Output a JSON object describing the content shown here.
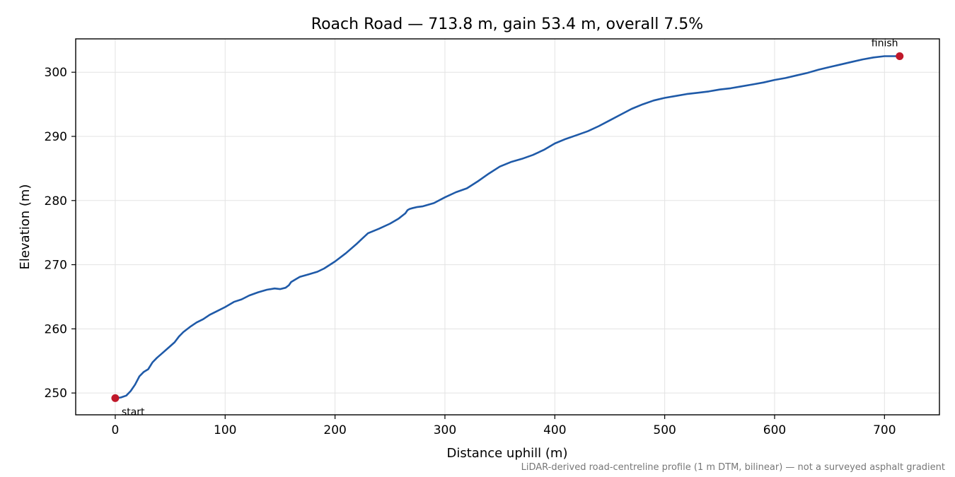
{
  "chart_data": {
    "type": "line",
    "title": "Roach Road — 713.8 m, gain 53.4 m, overall 7.5%",
    "xlabel": "Distance uphill (m)",
    "ylabel": "Elevation (m)",
    "xlim": [
      -36,
      750
    ],
    "ylim": [
      246.6,
      305.2
    ],
    "xticks": [
      0,
      100,
      200,
      300,
      400,
      500,
      600,
      700
    ],
    "yticks": [
      250,
      260,
      270,
      280,
      290,
      300
    ],
    "grid": true,
    "footnote": "LiDAR-derived road-centreline profile (1 m DTM, bilinear) — not a surveyed asphalt gradient",
    "series": [
      {
        "color": "#1f5aa8",
        "x": [
          0,
          5,
          10,
          14,
          18,
          22,
          26,
          30,
          34,
          38,
          42,
          48,
          54,
          58,
          62,
          68,
          74,
          80,
          86,
          92,
          100,
          108,
          115,
          122,
          130,
          138,
          145,
          150,
          155,
          158,
          160,
          164,
          168,
          172,
          176,
          180,
          184,
          190,
          200,
          210,
          220,
          225,
          230,
          240,
          250,
          258,
          264,
          266,
          268,
          270,
          275,
          280,
          290,
          300,
          310,
          320,
          330,
          340,
          350,
          360,
          370,
          380,
          390,
          400,
          410,
          420,
          430,
          440,
          450,
          460,
          470,
          480,
          490,
          500,
          510,
          520,
          530,
          540,
          550,
          560,
          570,
          580,
          590,
          600,
          610,
          620,
          630,
          640,
          650,
          660,
          670,
          680,
          690,
          700,
          713.8
        ],
        "y": [
          249.2,
          249.3,
          249.6,
          250.3,
          251.3,
          252.6,
          253.3,
          253.7,
          254.8,
          255.5,
          256.1,
          257.0,
          257.9,
          258.8,
          259.5,
          260.3,
          261.0,
          261.5,
          262.2,
          262.7,
          263.4,
          264.2,
          264.6,
          265.2,
          265.7,
          266.1,
          266.3,
          266.2,
          266.4,
          266.8,
          267.3,
          267.7,
          268.1,
          268.3,
          268.5,
          268.7,
          268.9,
          269.4,
          270.5,
          271.8,
          273.3,
          274.1,
          274.9,
          275.6,
          276.4,
          277.2,
          278.0,
          278.5,
          278.7,
          278.8,
          279.0,
          279.1,
          279.6,
          280.5,
          281.3,
          281.9,
          283.0,
          284.2,
          285.3,
          286.0,
          286.5,
          287.1,
          287.9,
          288.9,
          289.6,
          290.2,
          290.8,
          291.6,
          292.5,
          293.4,
          294.3,
          295.0,
          295.6,
          296.0,
          296.3,
          296.6,
          296.8,
          297.0,
          297.3,
          297.5,
          297.8,
          298.1,
          298.4,
          298.8,
          299.1,
          299.5,
          299.9,
          300.4,
          300.8,
          301.2,
          301.6,
          302.0,
          302.3,
          302.5,
          302.5
        ]
      }
    ],
    "annotations": [
      {
        "label": "start",
        "x": 0,
        "y": 249.2,
        "color": "#c0182a"
      },
      {
        "label": "finish",
        "x": 713.8,
        "y": 302.5,
        "color": "#c0182a"
      }
    ]
  }
}
